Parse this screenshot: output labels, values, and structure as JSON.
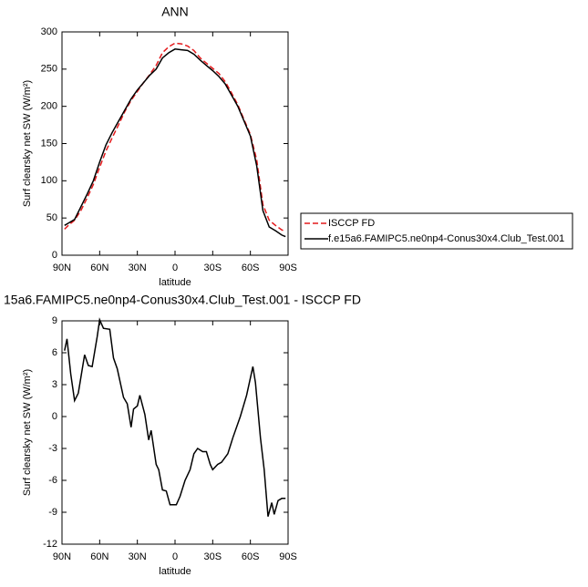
{
  "chart_data": [
    {
      "type": "line",
      "title": "ANN",
      "xlabel": "latitude",
      "ylabel": "Surf clearsky net SW (W/m²)",
      "x": [
        88,
        85,
        80,
        75,
        70,
        65,
        60,
        55,
        50,
        45,
        40,
        35,
        30,
        25,
        20,
        15,
        10,
        5,
        0,
        -5,
        -10,
        -15,
        -20,
        -25,
        -30,
        -35,
        -40,
        -45,
        -50,
        -55,
        -60,
        -65,
        -70,
        -75,
        -80,
        -85,
        -88
      ],
      "series": [
        {
          "name": "ISCCP FD",
          "color": "#e41a1c",
          "dash": true,
          "values": [
            35,
            40,
            47,
            60,
            77,
            95,
            118,
            140,
            158,
            175,
            193,
            208,
            220,
            232,
            243,
            255,
            272,
            280,
            285,
            284,
            281,
            275,
            265,
            258,
            251,
            244,
            233,
            218,
            202,
            182,
            162,
            128,
            68,
            47,
            40,
            34,
            32
          ]
        },
        {
          "name": "f.e15a6.FAMIPC5.ne0np4-Conus30x4.Club_Test.001",
          "color": "#000000",
          "dash": false,
          "values": [
            40,
            43,
            48,
            65,
            82,
            100,
            125,
            148,
            165,
            180,
            195,
            210,
            222,
            232,
            242,
            250,
            265,
            272,
            277,
            276,
            275,
            270,
            262,
            255,
            248,
            240,
            230,
            215,
            200,
            180,
            160,
            120,
            60,
            38,
            33,
            27,
            25
          ]
        }
      ],
      "xlim": [
        90,
        -90
      ],
      "xticks": [
        {
          "value": 90,
          "label": "90N"
        },
        {
          "value": 60,
          "label": "60N"
        },
        {
          "value": 30,
          "label": "30N"
        },
        0,
        {
          "value": -30,
          "label": "30S"
        },
        {
          "value": -60,
          "label": "60S"
        },
        {
          "value": -90,
          "label": "90S"
        }
      ],
      "ylim": [
        0,
        300
      ],
      "yticks": [
        0,
        50,
        100,
        150,
        200,
        250,
        300
      ],
      "legend": "right"
    },
    {
      "type": "line",
      "title": "15a6.FAMIPC5.ne0np4-Conus30x4.Club_Test.001 - ISCCP FD",
      "xlabel": "latitude",
      "ylabel": "Surf clearsky net SW (W/m²)",
      "x": [
        88,
        86,
        83,
        80,
        77,
        72,
        69,
        66,
        62,
        60,
        57,
        52,
        49,
        46,
        41,
        38,
        35,
        33,
        30,
        28,
        24,
        21,
        19,
        15,
        13,
        10,
        7,
        4,
        -1,
        -4,
        -8,
        -12,
        -15,
        -18,
        -22,
        -25,
        -28,
        -30,
        -34,
        -37,
        -42,
        -46,
        -52,
        -57,
        -62,
        -64,
        -68,
        -71,
        -74,
        -77,
        -79,
        -82,
        -85,
        -88
      ],
      "series": [
        {
          "name": null,
          "color": "#000000",
          "dash": false,
          "values": [
            6.2,
            7.3,
            4,
            1.5,
            2.2,
            5.8,
            4.8,
            4.7,
            7.5,
            9.1,
            8.3,
            8.2,
            5.5,
            4.5,
            1.8,
            1.2,
            -1,
            0.7,
            1,
            2,
            0.2,
            -2.2,
            -1.3,
            -4.5,
            -5,
            -6.9,
            -7,
            -8.3,
            -8.3,
            -7.5,
            -6,
            -5,
            -3.5,
            -3,
            -3.3,
            -3.3,
            -4.5,
            -5,
            -4.5,
            -4.3,
            -3.5,
            -2,
            0,
            2,
            4.7,
            3.2,
            -2,
            -5,
            -9.4,
            -8.1,
            -9.2,
            -7.9,
            -7.7,
            -7.7
          ]
        }
      ],
      "xlim": [
        90,
        -90
      ],
      "xticks": [
        {
          "value": 90,
          "label": "90N"
        },
        {
          "value": 60,
          "label": "60N"
        },
        {
          "value": 30,
          "label": "30N"
        },
        0,
        {
          "value": -30,
          "label": "30S"
        },
        {
          "value": -60,
          "label": "60S"
        },
        {
          "value": -90,
          "label": "90S"
        }
      ],
      "ylim": [
        -12,
        9
      ],
      "yticks": [
        -12,
        -9,
        -6,
        -3,
        0,
        3,
        6,
        9
      ]
    }
  ]
}
